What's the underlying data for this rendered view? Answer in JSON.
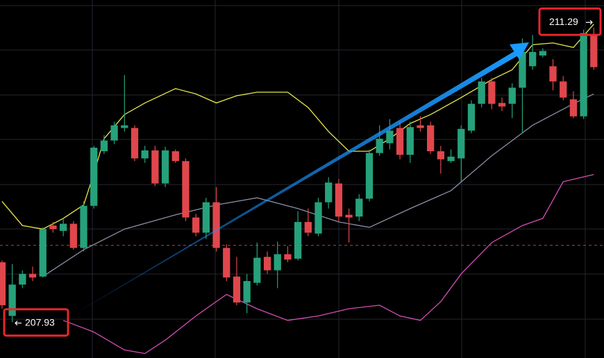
{
  "chart_data": {
    "type": "candlestick",
    "ylim": [
      207.54,
      211.54
    ],
    "xlim": [
      -0.2,
      59
    ],
    "up_color": "#26a17b",
    "down_color": "#e0474c",
    "ohlc": [
      [
        208.61,
        208.63,
        208.09,
        208.13
      ],
      [
        208.01,
        208.59,
        207.94,
        208.36
      ],
      [
        208.36,
        208.52,
        208.32,
        208.48
      ],
      [
        208.48,
        208.56,
        208.4,
        208.44
      ],
      [
        208.45,
        209.0,
        208.44,
        208.98
      ],
      [
        209.02,
        209.06,
        208.94,
        208.98
      ],
      [
        208.96,
        209.1,
        208.9,
        209.04
      ],
      [
        209.04,
        209.07,
        208.75,
        208.77
      ],
      [
        208.77,
        209.29,
        208.73,
        209.24
      ],
      [
        209.24,
        209.91,
        209.21,
        209.89
      ],
      [
        209.85,
        210.03,
        209.82,
        209.97
      ],
      [
        209.97,
        210.18,
        209.93,
        210.14
      ],
      [
        210.11,
        210.7,
        210.07,
        210.14
      ],
      [
        210.11,
        210.14,
        209.74,
        209.77
      ],
      [
        209.77,
        209.91,
        209.72,
        209.86
      ],
      [
        209.86,
        209.91,
        209.46,
        209.49
      ],
      [
        209.49,
        209.9,
        209.45,
        209.86
      ],
      [
        209.85,
        209.87,
        209.72,
        209.74
      ],
      [
        209.74,
        209.77,
        209.07,
        209.11
      ],
      [
        209.11,
        209.15,
        208.9,
        208.94
      ],
      [
        208.94,
        209.33,
        208.87,
        209.28
      ],
      [
        209.28,
        209.45,
        208.73,
        208.77
      ],
      [
        208.77,
        208.81,
        208.4,
        208.44
      ],
      [
        208.45,
        208.67,
        208.13,
        208.16
      ],
      [
        208.16,
        208.48,
        208.04,
        208.4
      ],
      [
        208.38,
        208.83,
        208.35,
        208.66
      ],
      [
        208.67,
        208.73,
        208.48,
        208.52
      ],
      [
        208.52,
        208.84,
        208.32,
        208.7
      ],
      [
        208.7,
        208.79,
        208.61,
        208.64
      ],
      [
        208.65,
        209.18,
        208.63,
        209.06
      ],
      [
        209.06,
        209.21,
        208.9,
        208.94
      ],
      [
        208.93,
        209.33,
        208.9,
        209.28
      ],
      [
        209.28,
        209.56,
        209.21,
        209.5
      ],
      [
        209.49,
        209.54,
        209.07,
        209.12
      ],
      [
        209.14,
        209.21,
        208.83,
        209.11
      ],
      [
        209.12,
        209.37,
        209.07,
        209.32
      ],
      [
        209.32,
        209.87,
        209.29,
        209.83
      ],
      [
        209.83,
        210.14,
        209.8,
        209.99
      ],
      [
        209.94,
        210.21,
        209.87,
        210.08
      ],
      [
        210.11,
        210.18,
        209.76,
        209.81
      ],
      [
        209.81,
        210.18,
        209.72,
        210.12
      ],
      [
        210.14,
        210.24,
        210.07,
        210.11
      ],
      [
        210.14,
        210.18,
        209.82,
        209.85
      ],
      [
        209.85,
        209.91,
        209.6,
        209.76
      ],
      [
        209.74,
        209.87,
        209.72,
        209.79
      ],
      [
        209.77,
        210.14,
        209.51,
        210.1
      ],
      [
        210.08,
        210.42,
        210.05,
        210.38
      ],
      [
        210.38,
        210.67,
        210.34,
        210.63
      ],
      [
        210.63,
        210.67,
        210.32,
        210.38
      ],
      [
        210.39,
        210.45,
        210.3,
        210.35
      ],
      [
        210.38,
        210.61,
        210.22,
        210.56
      ],
      [
        210.56,
        211.11,
        210.05,
        210.96
      ],
      [
        210.8,
        211.15,
        210.76,
        210.96
      ],
      [
        210.92,
        211.0,
        210.9,
        210.97
      ],
      [
        210.8,
        210.88,
        210.53,
        210.63
      ],
      [
        210.63,
        210.69,
        210.42,
        210.45
      ],
      [
        210.43,
        210.52,
        210.22,
        210.24
      ],
      [
        210.24,
        211.21,
        210.21,
        211.17
      ],
      [
        211.15,
        211.23,
        210.76,
        210.79
      ]
    ],
    "lines": [
      {
        "color": "#e8e84a",
        "x": [
          0,
          2,
          4,
          6,
          8,
          9,
          10,
          12,
          14,
          17,
          19,
          21,
          23,
          25,
          28,
          30,
          32,
          34,
          36,
          38,
          40,
          42,
          45,
          48,
          50,
          52,
          54,
          56,
          58
        ],
        "values": [
          209.29,
          209.02,
          208.98,
          209.1,
          209.25,
          209.6,
          209.99,
          210.26,
          210.39,
          210.55,
          210.49,
          210.39,
          210.47,
          210.51,
          210.51,
          210.34,
          210.07,
          209.85,
          209.85,
          209.99,
          210.16,
          210.26,
          210.45,
          210.65,
          210.76,
          211.04,
          211.06,
          211.01,
          211.27
        ]
      },
      {
        "color": "#8a8fa8",
        "x": [
          4,
          8,
          12,
          17,
          21,
          25,
          29,
          33,
          36,
          40,
          44,
          48,
          52,
          56,
          58
        ],
        "values": [
          208.45,
          208.75,
          208.98,
          209.14,
          209.25,
          209.33,
          209.21,
          209.06,
          209.0,
          209.21,
          209.41,
          209.8,
          210.14,
          210.38,
          210.49
        ]
      },
      {
        "color": "#d64fb4",
        "x": [
          6,
          9,
          12,
          14,
          16,
          19,
          22,
          25,
          28,
          31,
          34,
          37,
          39,
          41,
          43,
          45,
          48,
          51,
          53,
          55,
          58
        ],
        "values": [
          207.96,
          207.83,
          207.63,
          207.59,
          207.74,
          208.01,
          208.25,
          208.09,
          207.96,
          208.01,
          208.09,
          208.13,
          208.01,
          207.96,
          208.17,
          208.48,
          208.83,
          209.02,
          209.1,
          209.51,
          209.59
        ]
      }
    ],
    "reference_line": {
      "value": 208.8,
      "color": "#e0474c"
    },
    "annotations": [
      {
        "label": "211.29",
        "value": 211.29
      },
      {
        "label": "207.93",
        "value": 207.93
      }
    ]
  }
}
